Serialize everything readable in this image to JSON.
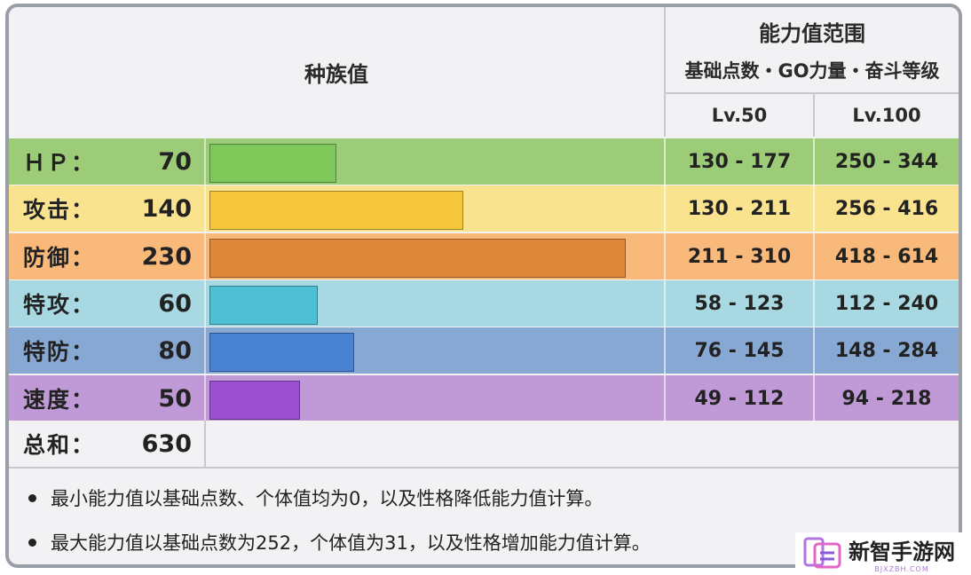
{
  "header": {
    "base_stats": "种族值",
    "range_title": "能力值范围",
    "range_subtitle": "基础点数・GO力量・奋斗等级",
    "lv50": "Lv.50",
    "lv100": "Lv.100"
  },
  "stats": [
    {
      "label": "ＨＰ：",
      "value": "70",
      "num": 70,
      "lv50": "130 - 177",
      "lv100": "250 - 344",
      "row_color": "#9dcc79",
      "bar_color": "#7ec85a"
    },
    {
      "label": "攻击：",
      "value": "140",
      "num": 140,
      "lv50": "130 - 211",
      "lv100": "256 - 416",
      "row_color": "#fae38f",
      "bar_color": "#f6c73a"
    },
    {
      "label": "防御：",
      "value": "230",
      "num": 230,
      "lv50": "211 - 310",
      "lv100": "418 - 614",
      "row_color": "#f8b97a",
      "bar_color": "#de883a"
    },
    {
      "label": "特攻：",
      "value": "60",
      "num": 60,
      "lv50": "58 - 123",
      "lv100": "112 - 240",
      "row_color": "#a8d9e2",
      "bar_color": "#4fc0d4"
    },
    {
      "label": "特防：",
      "value": "80",
      "num": 80,
      "lv50": "76 - 145",
      "lv100": "148 - 284",
      "row_color": "#88a8d4",
      "bar_color": "#4a82d3"
    },
    {
      "label": "速度：",
      "value": "50",
      "num": 50,
      "lv50": "49 - 112",
      "lv100": "94 - 218",
      "row_color": "#c09ad6",
      "bar_color": "#9a4fd0"
    }
  ],
  "total": {
    "label": "总和：",
    "value": "630"
  },
  "bar_scale_max": 250,
  "notes": [
    "最小能力值以基础点数、个体值均为0，以及性格降低能力值计算。",
    "最大能力值以基础点数为252，个体值为31，以及性格增加能力值计算。"
  ],
  "watermark": {
    "title": "新智手游网",
    "sub": "BJXZBH.COM"
  }
}
